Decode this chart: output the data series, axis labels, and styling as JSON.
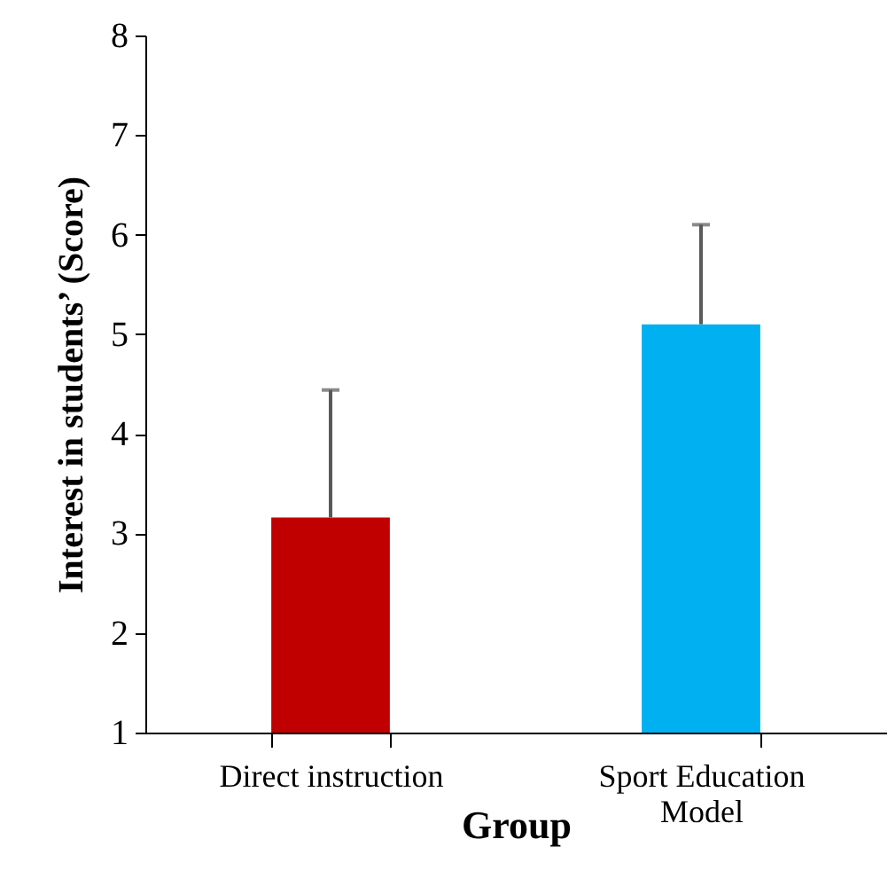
{
  "chart_data": {
    "type": "bar",
    "xlabel": "Group",
    "ylabel": "Interest in students’ (Score)",
    "categories": [
      "Direct instruction",
      "Sport Education Model"
    ],
    "values": [
      3.16,
      5.1
    ],
    "colors": [
      "#c00000",
      "#00b0f0"
    ],
    "errors": [
      [
        3.16,
        4.44
      ],
      [
        5.1,
        6.1
      ]
    ],
    "ylim": [
      1,
      8
    ],
    "yticks": [
      1,
      2,
      3,
      4,
      5,
      6,
      7,
      8
    ],
    "grid": false
  }
}
